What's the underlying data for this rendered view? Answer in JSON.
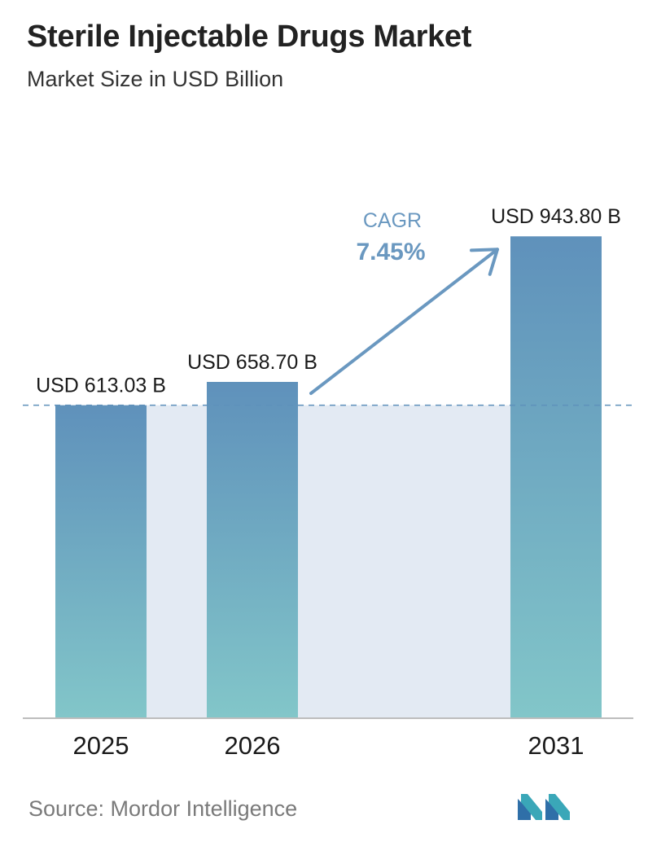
{
  "header": {
    "title": "Sterile Injectable Drugs Market",
    "subtitle": "Market Size in USD Billion"
  },
  "chart_data": {
    "type": "bar",
    "categories": [
      "2025",
      "2026",
      "2031"
    ],
    "values": [
      613.03,
      658.7,
      943.8
    ],
    "value_labels": [
      "USD 613.03 B",
      "USD 658.70 B",
      "USD 943.80 B"
    ],
    "ylim": [
      0,
      1000
    ],
    "grid": false,
    "legend": "none",
    "annotations": {
      "cagr_label": "CAGR",
      "cagr_value": "7.45%"
    },
    "colors": {
      "bar_top": "#5f91bb",
      "bar_bottom": "#82c6c9",
      "band": "#e3eaf3",
      "reference_line": "#5f91bb",
      "arrow": "#6a98c0",
      "cagr_text": "#6a98c0"
    }
  },
  "footer": {
    "source": "Source:  Mordor Intelligence",
    "logo_icon": "mordor-intelligence-logo-icon"
  }
}
